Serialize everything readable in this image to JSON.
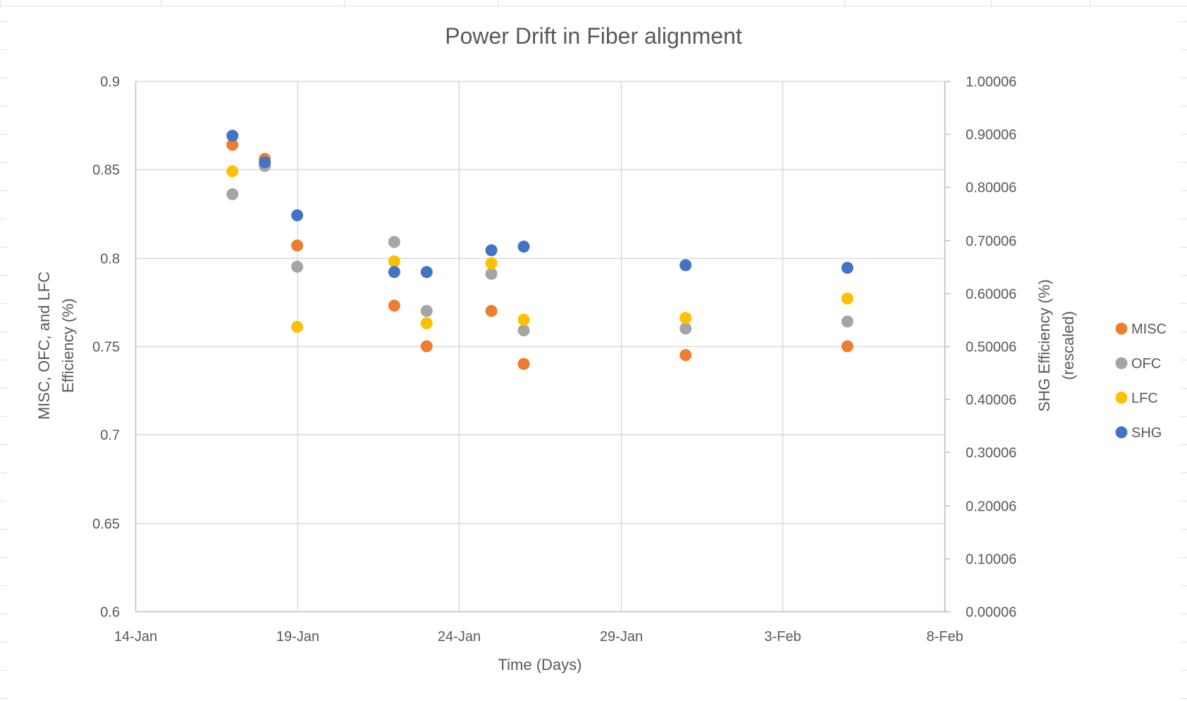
{
  "chart_data": {
    "type": "scatter",
    "title": "Power Drift in Fiber alignment",
    "xlabel": "Time (Days)",
    "ylabel": "MISC, OFC, and LFC Efficiency (%)",
    "ylabel_lines": [
      "MISC, OFC, and LFC",
      "Efficiency (%)"
    ],
    "y2label": "SHG Efficiency (%) (rescaled)",
    "y2label_lines": [
      "SHG Efficiency (%)",
      "(rescaled)"
    ],
    "x_ticks": [
      "14-Jan",
      "19-Jan",
      "24-Jan",
      "29-Jan",
      "3-Feb",
      "8-Feb"
    ],
    "xlim": [
      "2024-01-14",
      "2024-02-08"
    ],
    "ylim": [
      0.6,
      0.9
    ],
    "y_ticks": [
      "0.6",
      "0.65",
      "0.7",
      "0.75",
      "0.8",
      "0.85",
      "0.9"
    ],
    "y2lim": [
      6e-05,
      1.00006
    ],
    "y2_ticks": [
      "0.00006",
      "0.10006",
      "0.20006",
      "0.30006",
      "0.40006",
      "0.50006",
      "0.60006",
      "0.70006",
      "0.80006",
      "0.90006",
      "1.00006"
    ],
    "grid": true,
    "legend_position": "right",
    "series": [
      {
        "name": "MISC",
        "color": "#ED7D31",
        "axis": "left",
        "x": [
          "2024-01-17",
          "2024-01-18",
          "2024-01-19",
          "2024-01-22",
          "2024-01-23",
          "2024-01-25",
          "2024-01-26",
          "2024-01-31",
          "2024-02-05"
        ],
        "y": [
          0.864,
          0.856,
          0.807,
          0.773,
          0.75,
          0.77,
          0.74,
          0.745,
          0.75
        ]
      },
      {
        "name": "OFC",
        "color": "#A5A5A5",
        "axis": "left",
        "x": [
          "2024-01-17",
          "2024-01-18",
          "2024-01-19",
          "2024-01-22",
          "2024-01-23",
          "2024-01-25",
          "2024-01-26",
          "2024-01-31",
          "2024-02-05"
        ],
        "y": [
          0.836,
          0.852,
          0.795,
          0.809,
          0.77,
          0.791,
          0.759,
          0.76,
          0.764
        ]
      },
      {
        "name": "LFC",
        "color": "#FFC000",
        "axis": "left",
        "x": [
          "2024-01-17",
          "2024-01-19",
          "2024-01-22",
          "2024-01-23",
          "2024-01-25",
          "2024-01-26",
          "2024-01-31",
          "2024-02-05"
        ],
        "y": [
          0.849,
          0.761,
          0.798,
          0.763,
          0.797,
          0.765,
          0.766,
          0.777
        ]
      },
      {
        "name": "SHG",
        "color": "#4472C4",
        "axis": "right",
        "x": [
          "2024-01-17",
          "2024-01-18",
          "2024-01-19",
          "2024-01-22",
          "2024-01-23",
          "2024-01-25",
          "2024-01-26",
          "2024-01-31",
          "2024-02-05"
        ],
        "y": [
          0.897,
          0.847,
          0.747,
          0.64,
          0.64,
          0.681,
          0.688,
          0.653,
          0.648
        ]
      }
    ]
  },
  "colors": {
    "gridline": "#D9D9D9",
    "axis_line": "#BFBFBF",
    "text": "#595959",
    "sheet_grid": "#E1E1E1"
  }
}
